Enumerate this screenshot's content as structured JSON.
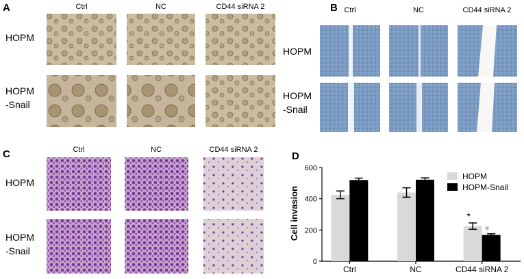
{
  "panels": {
    "A": {
      "label": "A",
      "columns": [
        "Ctrl",
        "NC",
        "CD44 siRNA 2"
      ],
      "rows": [
        [
          "HOPM"
        ],
        [
          "HOPM",
          "-Snail"
        ]
      ]
    },
    "B": {
      "label": "B",
      "columns": [
        "Ctrl",
        "NC",
        "CD44 siRNA 2"
      ],
      "rows": [
        [
          "HOPM"
        ],
        [
          "HOPM",
          "-Snail"
        ]
      ]
    },
    "C": {
      "label": "C",
      "columns": [
        "Ctrl",
        "NC",
        "CD44 siRNA 2"
      ],
      "rows": [
        [
          "HOPM"
        ],
        [
          "HOPM",
          "-Snail"
        ]
      ]
    },
    "D": {
      "label": "D"
    }
  },
  "chart_data": {
    "type": "bar",
    "ylabel": "Cell invasion",
    "categories": [
      "Ctrl",
      "NC",
      "CD44 siRNA 2"
    ],
    "series": [
      {
        "name": "HOPM",
        "color": "#d9d9d9",
        "values": [
          425,
          440,
          225
        ],
        "errors": [
          25,
          30,
          20
        ]
      },
      {
        "name": "HOPM-Snail",
        "color": "#000000",
        "values": [
          520,
          522,
          168
        ],
        "errors": [
          12,
          12,
          8
        ]
      }
    ],
    "annotations": [
      "*",
      "#"
    ],
    "ylim": [
      0,
      600
    ],
    "yticks": [
      0,
      200,
      400,
      600
    ]
  }
}
